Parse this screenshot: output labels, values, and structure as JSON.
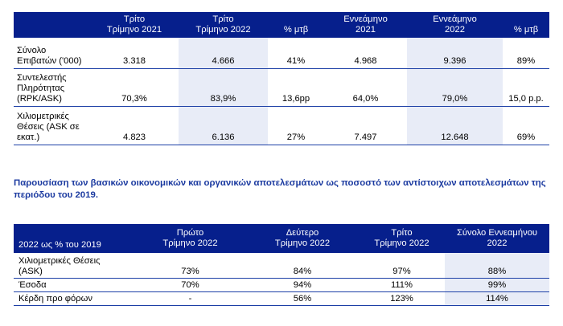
{
  "table1": {
    "headers": [
      {
        "line1": "",
        "line2": ""
      },
      {
        "line1": "Τρίτο",
        "line2": "Τρίμηνο 2021"
      },
      {
        "line1": "Τρίτο",
        "line2": "Τρίμηνο 2022"
      },
      {
        "line1": "",
        "line2": "% μτβ"
      },
      {
        "line1": "Εννεάμηνο",
        "line2": "2021"
      },
      {
        "line1": "Εννεάμηνο",
        "line2": "2022"
      },
      {
        "line1": "",
        "line2": "% μτβ"
      }
    ],
    "rows": [
      {
        "label_lines": [
          "Σύνολο",
          "Επιβατών ('000)"
        ],
        "values": [
          "3.318",
          "4.666",
          "41%",
          "4.968",
          "9.396",
          "89%"
        ]
      },
      {
        "label_lines": [
          "Συντελεστής",
          "Πληρότητας",
          "(RPK/ASK)"
        ],
        "values": [
          "70,3%",
          "83,9%",
          "13,6pp",
          "64,0%",
          "79,0%",
          "15,0 p.p."
        ]
      },
      {
        "label_lines": [
          "Χιλιομετρικές",
          "Θέσεις (ASK σε",
          "εκατ.)"
        ],
        "values": [
          "4.823",
          "6.136",
          "27%",
          "7.497",
          "12.648",
          "69%"
        ]
      }
    ]
  },
  "heading": "Παρουσίαση των βασικών οικονομικών και οργανικών αποτελεσμάτων ως ποσοστό των αντίστοιχων αποτελεσμάτων της περιόδου του 2019.",
  "table2": {
    "headers": [
      {
        "line1": "",
        "line2": "2022 ως % του 2019"
      },
      {
        "line1": "Πρώτο",
        "line2": "Τρίμηνο 2022"
      },
      {
        "line1": "Δεύτερο",
        "line2": "Τρίμηνο 2022"
      },
      {
        "line1": "Τρίτο",
        "line2": "Τρίμηνο 2022"
      },
      {
        "line1": "Σύνολο Εννεαμήνου",
        "line2": "2022"
      }
    ],
    "rows": [
      {
        "label_lines": [
          "Χιλιομετρικές Θέσεις",
          "(ASK)"
        ],
        "values": [
          "73%",
          "84%",
          "97%",
          "88%"
        ]
      },
      {
        "label_lines": [
          "Έσοδα"
        ],
        "values": [
          "70%",
          "94%",
          "111%",
          "99%"
        ]
      },
      {
        "label_lines": [
          "Κέρδη προ φόρων"
        ],
        "values": [
          "-",
          "56%",
          "123%",
          "114%"
        ]
      }
    ]
  }
}
